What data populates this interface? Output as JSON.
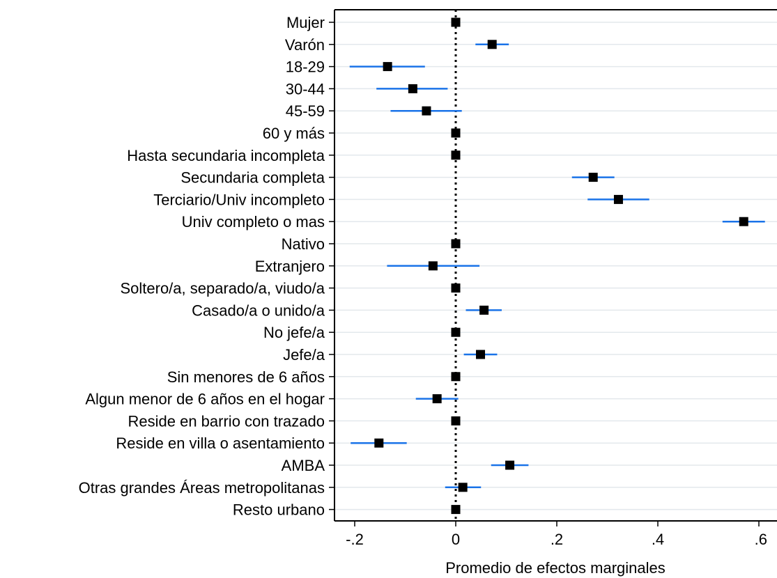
{
  "chart_data": {
    "type": "coefficient-plot",
    "xlabel": "Promedio de efectos marginales",
    "xlim": [
      -0.24,
      0.62
    ],
    "xticks": [
      -0.2,
      0,
      0.2,
      0.4,
      0.6
    ],
    "xtick_labels": [
      "-.2",
      "0",
      ".2",
      ".4",
      ".6"
    ],
    "reference_line": 0,
    "grid": "horizontal",
    "colors": {
      "ci": "#1a73e8",
      "marker": "#000000",
      "grid": "#e3e8ec",
      "axis": "#000000"
    },
    "categories": [
      "Mujer",
      "Varón",
      "18-29",
      "30-44",
      "45-59",
      "60 y más",
      "Hasta secundaria incompleta",
      "Secundaria completa",
      "Terciario/Univ incompleto",
      "Univ completo o mas",
      "Nativo",
      "Extranjero",
      "Soltero/a, separado/a, viudo/a",
      "Casado/a o unido/a",
      "No jefe/a",
      "Jefe/a",
      "Sin menores de 6 años",
      "Algun menor de 6 años en el hogar",
      "Reside en barrio con trazado",
      "Reside en villa o asentamiento",
      "AMBA",
      "Otras grandes Áreas metropolitanas",
      "Resto urbano"
    ],
    "estimates": [
      0,
      0.072,
      -0.135,
      -0.085,
      -0.058,
      0,
      0,
      0.272,
      0.322,
      0.57,
      0,
      -0.045,
      0,
      0.056,
      0,
      0.049,
      0,
      -0.037,
      0,
      -0.152,
      0.107,
      0.014,
      0
    ],
    "ci_low": [
      0,
      0.039,
      -0.21,
      -0.157,
      -0.129,
      0,
      0,
      0.23,
      0.261,
      0.528,
      0,
      -0.136,
      0,
      0.02,
      0,
      0.016,
      0,
      -0.079,
      0,
      -0.208,
      0.07,
      -0.021,
      0
    ],
    "ci_high": [
      0,
      0.105,
      -0.061,
      -0.016,
      0.012,
      0,
      0,
      0.314,
      0.383,
      0.612,
      0,
      0.047,
      0,
      0.091,
      0,
      0.082,
      0,
      0.005,
      0,
      -0.097,
      0.144,
      0.05,
      0
    ]
  }
}
